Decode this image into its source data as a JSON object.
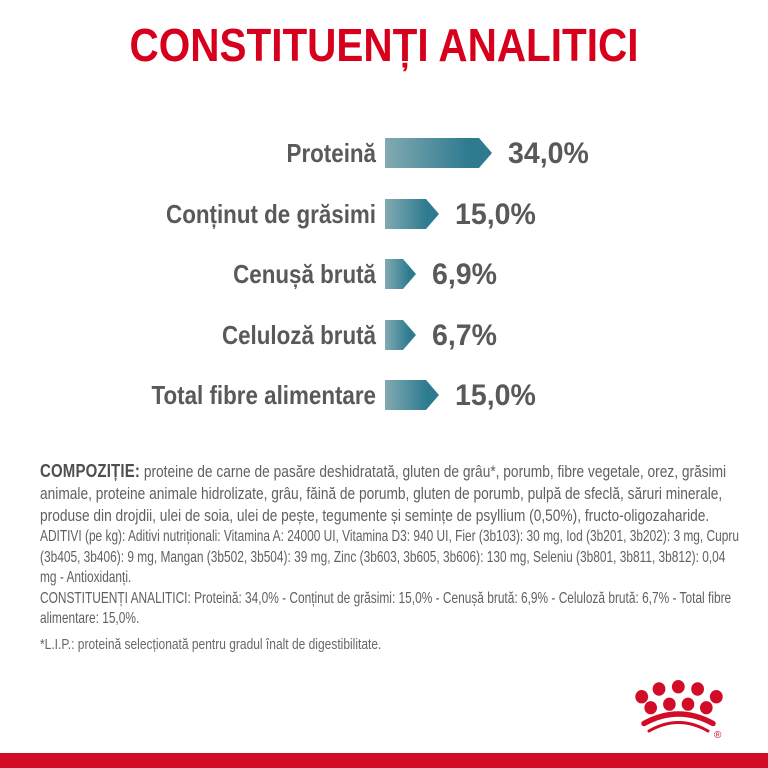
{
  "title": "CONSTITUENȚI ANALITICI",
  "chart_data": {
    "type": "bar",
    "orientation": "horizontal",
    "title": "CONSTITUENȚI ANALITICI",
    "categories": [
      "Proteină",
      "Conținut de grăsimi",
      "Cenușă brută",
      "Celuloză brută",
      "Total fibre alimentare"
    ],
    "values": [
      34.0,
      15.0,
      6.9,
      6.7,
      15.0
    ],
    "value_labels": [
      "34,0%",
      "15,0%",
      "6,9%",
      "6,7%",
      "15,0%"
    ],
    "unit": "%",
    "xlim": [
      0,
      40
    ],
    "grid": false,
    "legend": "none",
    "bar_style": "right-pointing arrow, teal gradient",
    "value_label_position": "right of bar"
  },
  "composition": {
    "heading": "COMPOZIȚIE:",
    "body": "proteine de carne de pasăre deshidratată, gluten de grâu*, porumb, fibre vegetale, orez, grăsimi animale, proteine animale hidrolizate, grâu, făină de porumb, gluten de porumb, pulpă de sfeclă, săruri minerale, produse din drojdii, ulei de soia, ulei de pește, tegumente și semințe de psyllium (0,50%), fructo-oligozaharide."
  },
  "additives": "ADITIVI (pe kg): Aditivi nutriționali: Vitamina A: 24000 UI, Vitamina D3: 940 UI, Fier (3b103): 30 mg, Iod (3b201, 3b202): 3 mg, Cupru (3b405, 3b406): 9 mg, Mangan (3b502, 3b504): 39 mg, Zinc (3b603, 3b605, 3b606): 130 mg, Seleniu (3b801, 3b811, 3b812): 0,04 mg - Antioxidanți.",
  "analytical_constituents_line": "CONSTITUENȚI ANALITICI: Proteină: 34,0% - Conținut de grăsimi: 15,0% - Cenușă brută: 6,9% - Celuloză brută: 6,7% - Total fibre alimentare: 15,0%.",
  "footnote": "*L.I.P.: proteină selecționată pentru gradul înalt de digestibilitate.",
  "brand": {
    "logo": "royal-canin-crown",
    "registered_mark": "®"
  },
  "colors": {
    "red_title": "#d6001c",
    "red_brand": "#d20b27",
    "text_gray": "#58595b",
    "body_gray": "#5f6062",
    "teal_light": "#82aab1",
    "teal_dark": "#2e7b90"
  }
}
